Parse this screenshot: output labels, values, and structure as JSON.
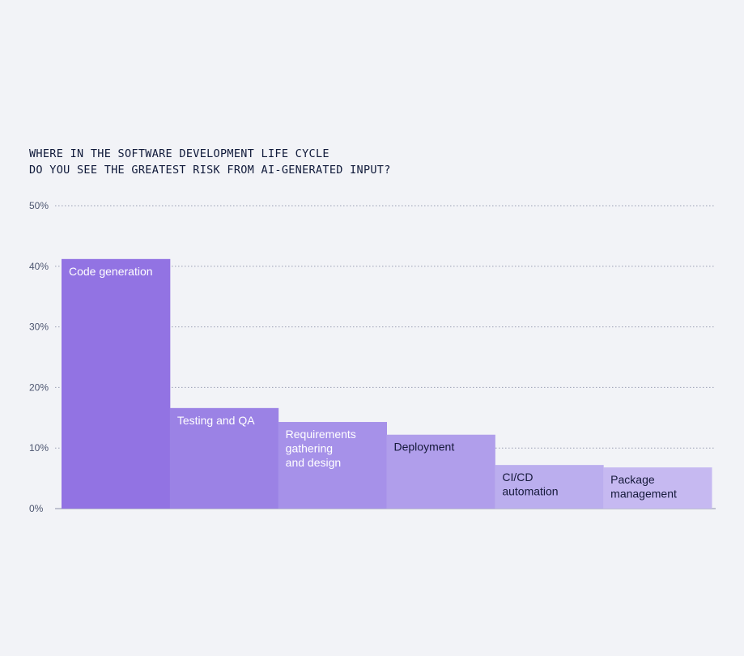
{
  "chart_data": {
    "type": "bar",
    "title": [
      "WHERE IN THE SOFTWARE DEVELOPMENT LIFE CYCLE",
      "DO YOU SEE THE GREATEST RISK FROM AI-GENERATED INPUT?"
    ],
    "categories": [
      "Code generation",
      "Testing and QA",
      "Requirements gathering and design",
      "Deployment",
      "CI/CD automation",
      "Package management"
    ],
    "category_label_lines": [
      [
        "Code generation"
      ],
      [
        "Testing and QA"
      ],
      [
        "Requirements",
        "gathering",
        "and design"
      ],
      [
        "Deployment"
      ],
      [
        "CI/CD",
        "automation"
      ],
      [
        "Package",
        "management"
      ]
    ],
    "values": [
      41.2,
      16.6,
      14.3,
      12.2,
      7.2,
      6.8
    ],
    "ylim": [
      0,
      50
    ],
    "y_ticks": [
      0,
      10,
      20,
      30,
      40,
      50
    ],
    "y_tick_labels": [
      "0%",
      "10%",
      "20%",
      "30%",
      "40%",
      "50%"
    ],
    "grid": "horizontal-dotted",
    "xlabel": "",
    "ylabel": "",
    "colors": {
      "bars": [
        "#9273e3",
        "#9b82e5",
        "#a691e9",
        "#b09eeb",
        "#bbaeee",
        "#c6b9f1"
      ],
      "label_light": "#ffffff",
      "label_dark": "#15193a",
      "grid": "#9aa0b4",
      "axis": "#8c92a8",
      "background": "#f2f3f7"
    },
    "label_dark_from_index": 3
  }
}
